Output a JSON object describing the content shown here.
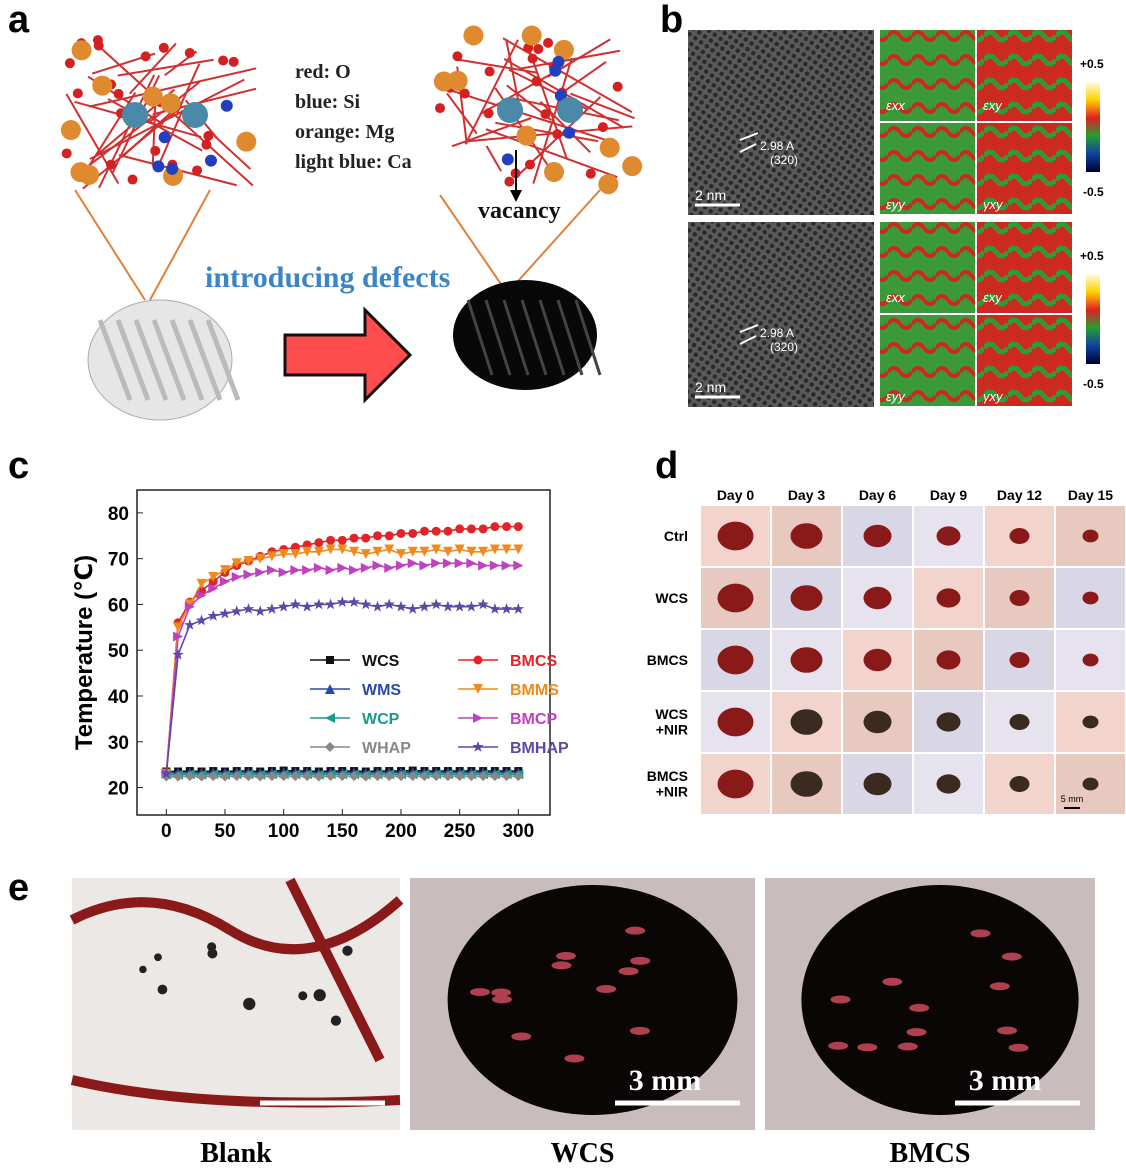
{
  "panel_labels": [
    "a",
    "b",
    "c",
    "d",
    "e"
  ],
  "panel_a": {
    "legend": [
      "red: O",
      "blue: Si",
      "orange: Mg",
      "light blue: Ca"
    ],
    "vacancy": "vacancy",
    "arrow_text": "introducing defects"
  },
  "panel_b": {
    "rows": [
      {
        "spacing": "2.98 A",
        "plane": "(320)",
        "scale": "2 nm",
        "maps": [
          "εxx",
          "εxy",
          "εyy",
          "γxy"
        ],
        "colorbar": [
          "+0.5",
          "-0.5"
        ]
      },
      {
        "spacing": "2.98 A",
        "plane": "(320)",
        "scale": "2 nm",
        "maps": [
          "εxx",
          "εxy",
          "εyy",
          "γxy"
        ],
        "colorbar": [
          "+0.5",
          "-0.5"
        ]
      }
    ]
  },
  "chart_data": {
    "type": "line",
    "y_label": "Temperature (℃)",
    "x": [
      0,
      10,
      20,
      30,
      40,
      50,
      60,
      70,
      80,
      90,
      100,
      110,
      120,
      130,
      140,
      150,
      160,
      170,
      180,
      190,
      200,
      210,
      220,
      230,
      240,
      250,
      260,
      270,
      280,
      290,
      300
    ],
    "xlim": [
      -25,
      327
    ],
    "ylim": [
      14,
      85
    ],
    "xticks": [
      0,
      50,
      100,
      150,
      200,
      250,
      300
    ],
    "yticks": [
      20,
      30,
      40,
      50,
      60,
      70,
      80
    ],
    "series": [
      {
        "name": "WCS",
        "color": "#111111",
        "marker": "square",
        "values": [
          23.5,
          23.5,
          23.6,
          23.5,
          23.6,
          23.5,
          23.6,
          23.6,
          23.5,
          23.6,
          23.7,
          23.6,
          23.6,
          23.5,
          23.6,
          23.6,
          23.6,
          23.5,
          23.6,
          23.6,
          23.6,
          23.7,
          23.6,
          23.6,
          23.6,
          23.6,
          23.6,
          23.6,
          23.6,
          23.6,
          23.6
        ]
      },
      {
        "name": "BMCS",
        "color": "#e0242a",
        "marker": "circle",
        "values": [
          23,
          56,
          60.5,
          63,
          65,
          67,
          68.5,
          69.5,
          70.5,
          71.5,
          72,
          72.5,
          73,
          73.5,
          74,
          74,
          74.5,
          74.5,
          75,
          75,
          75.5,
          75.5,
          76,
          76,
          76,
          76.5,
          76.5,
          76.5,
          77,
          77,
          77
        ]
      },
      {
        "name": "WMS",
        "color": "#2a4aa8",
        "marker": "triangle-up",
        "values": [
          23.2,
          23.2,
          23.3,
          23.2,
          23.3,
          23.2,
          23.3,
          23.3,
          23.2,
          23.3,
          23.3,
          23.3,
          23.3,
          23.2,
          23.3,
          23.3,
          23.3,
          23.2,
          23.3,
          23.3,
          23.3,
          23.3,
          23.3,
          23.3,
          23.3,
          23.3,
          23.3,
          23.3,
          23.3,
          23.3,
          23.3
        ]
      },
      {
        "name": "BMMS",
        "color": "#f08a1c",
        "marker": "triangle-down",
        "values": [
          23,
          55,
          60,
          64.5,
          66,
          67.5,
          69,
          69.5,
          70,
          70.5,
          71,
          71,
          71.5,
          71.5,
          72,
          72,
          71.5,
          71,
          71.5,
          72,
          71,
          71.5,
          71.5,
          72,
          71.5,
          72,
          71.5,
          71.5,
          72,
          72,
          72
        ]
      },
      {
        "name": "WCP",
        "color": "#1a9a8a",
        "marker": "triangle-left",
        "values": [
          22.8,
          22.8,
          22.9,
          22.8,
          22.9,
          22.8,
          22.9,
          22.9,
          22.8,
          22.9,
          22.9,
          22.9,
          22.9,
          22.8,
          22.9,
          22.9,
          22.9,
          22.8,
          22.9,
          22.9,
          22.9,
          22.9,
          22.9,
          22.9,
          22.9,
          22.9,
          22.9,
          22.9,
          22.9,
          22.9,
          22.9
        ]
      },
      {
        "name": "BMCP",
        "color": "#c040c0",
        "marker": "triangle-right",
        "values": [
          23,
          53,
          59.5,
          62,
          63.5,
          65,
          66,
          66.5,
          67,
          67.5,
          67,
          67.5,
          67.5,
          68,
          67.5,
          68,
          67.5,
          68,
          68.5,
          68,
          68.5,
          69,
          68.5,
          69,
          69,
          69,
          69,
          68.5,
          68.5,
          68.5,
          68.5
        ]
      },
      {
        "name": "WHAP",
        "color": "#888888",
        "marker": "diamond",
        "values": [
          22.4,
          22.4,
          22.5,
          22.4,
          22.5,
          22.4,
          22.5,
          22.5,
          22.4,
          22.5,
          22.5,
          22.5,
          22.5,
          22.4,
          22.5,
          22.5,
          22.5,
          22.4,
          22.5,
          22.5,
          22.5,
          22.5,
          22.5,
          22.5,
          22.5,
          22.5,
          22.5,
          22.5,
          22.5,
          22.5,
          22.5
        ]
      },
      {
        "name": "BMHAP",
        "color": "#5a4aa8",
        "marker": "star",
        "values": [
          23,
          49,
          55.5,
          56.5,
          57.5,
          58,
          58.5,
          59,
          58.5,
          59,
          59.5,
          60,
          59.5,
          60,
          60,
          60.5,
          60.5,
          60,
          59.5,
          60,
          59.5,
          59,
          59.5,
          60,
          59.5,
          59.5,
          59.5,
          60,
          59,
          59,
          59
        ]
      }
    ]
  },
  "panel_d": {
    "days": [
      "Day 0",
      "Day 3",
      "Day 6",
      "Day 9",
      "Day 12",
      "Day 15"
    ],
    "groups": [
      "Ctrl",
      "WCS",
      "BMCS",
      "WCS\n+NIR",
      "BMCS\n+NIR"
    ],
    "scale": "5 mm"
  },
  "panel_e": {
    "labels": [
      "Blank",
      "WCS",
      "BMCS"
    ],
    "scale": "3 mm"
  }
}
